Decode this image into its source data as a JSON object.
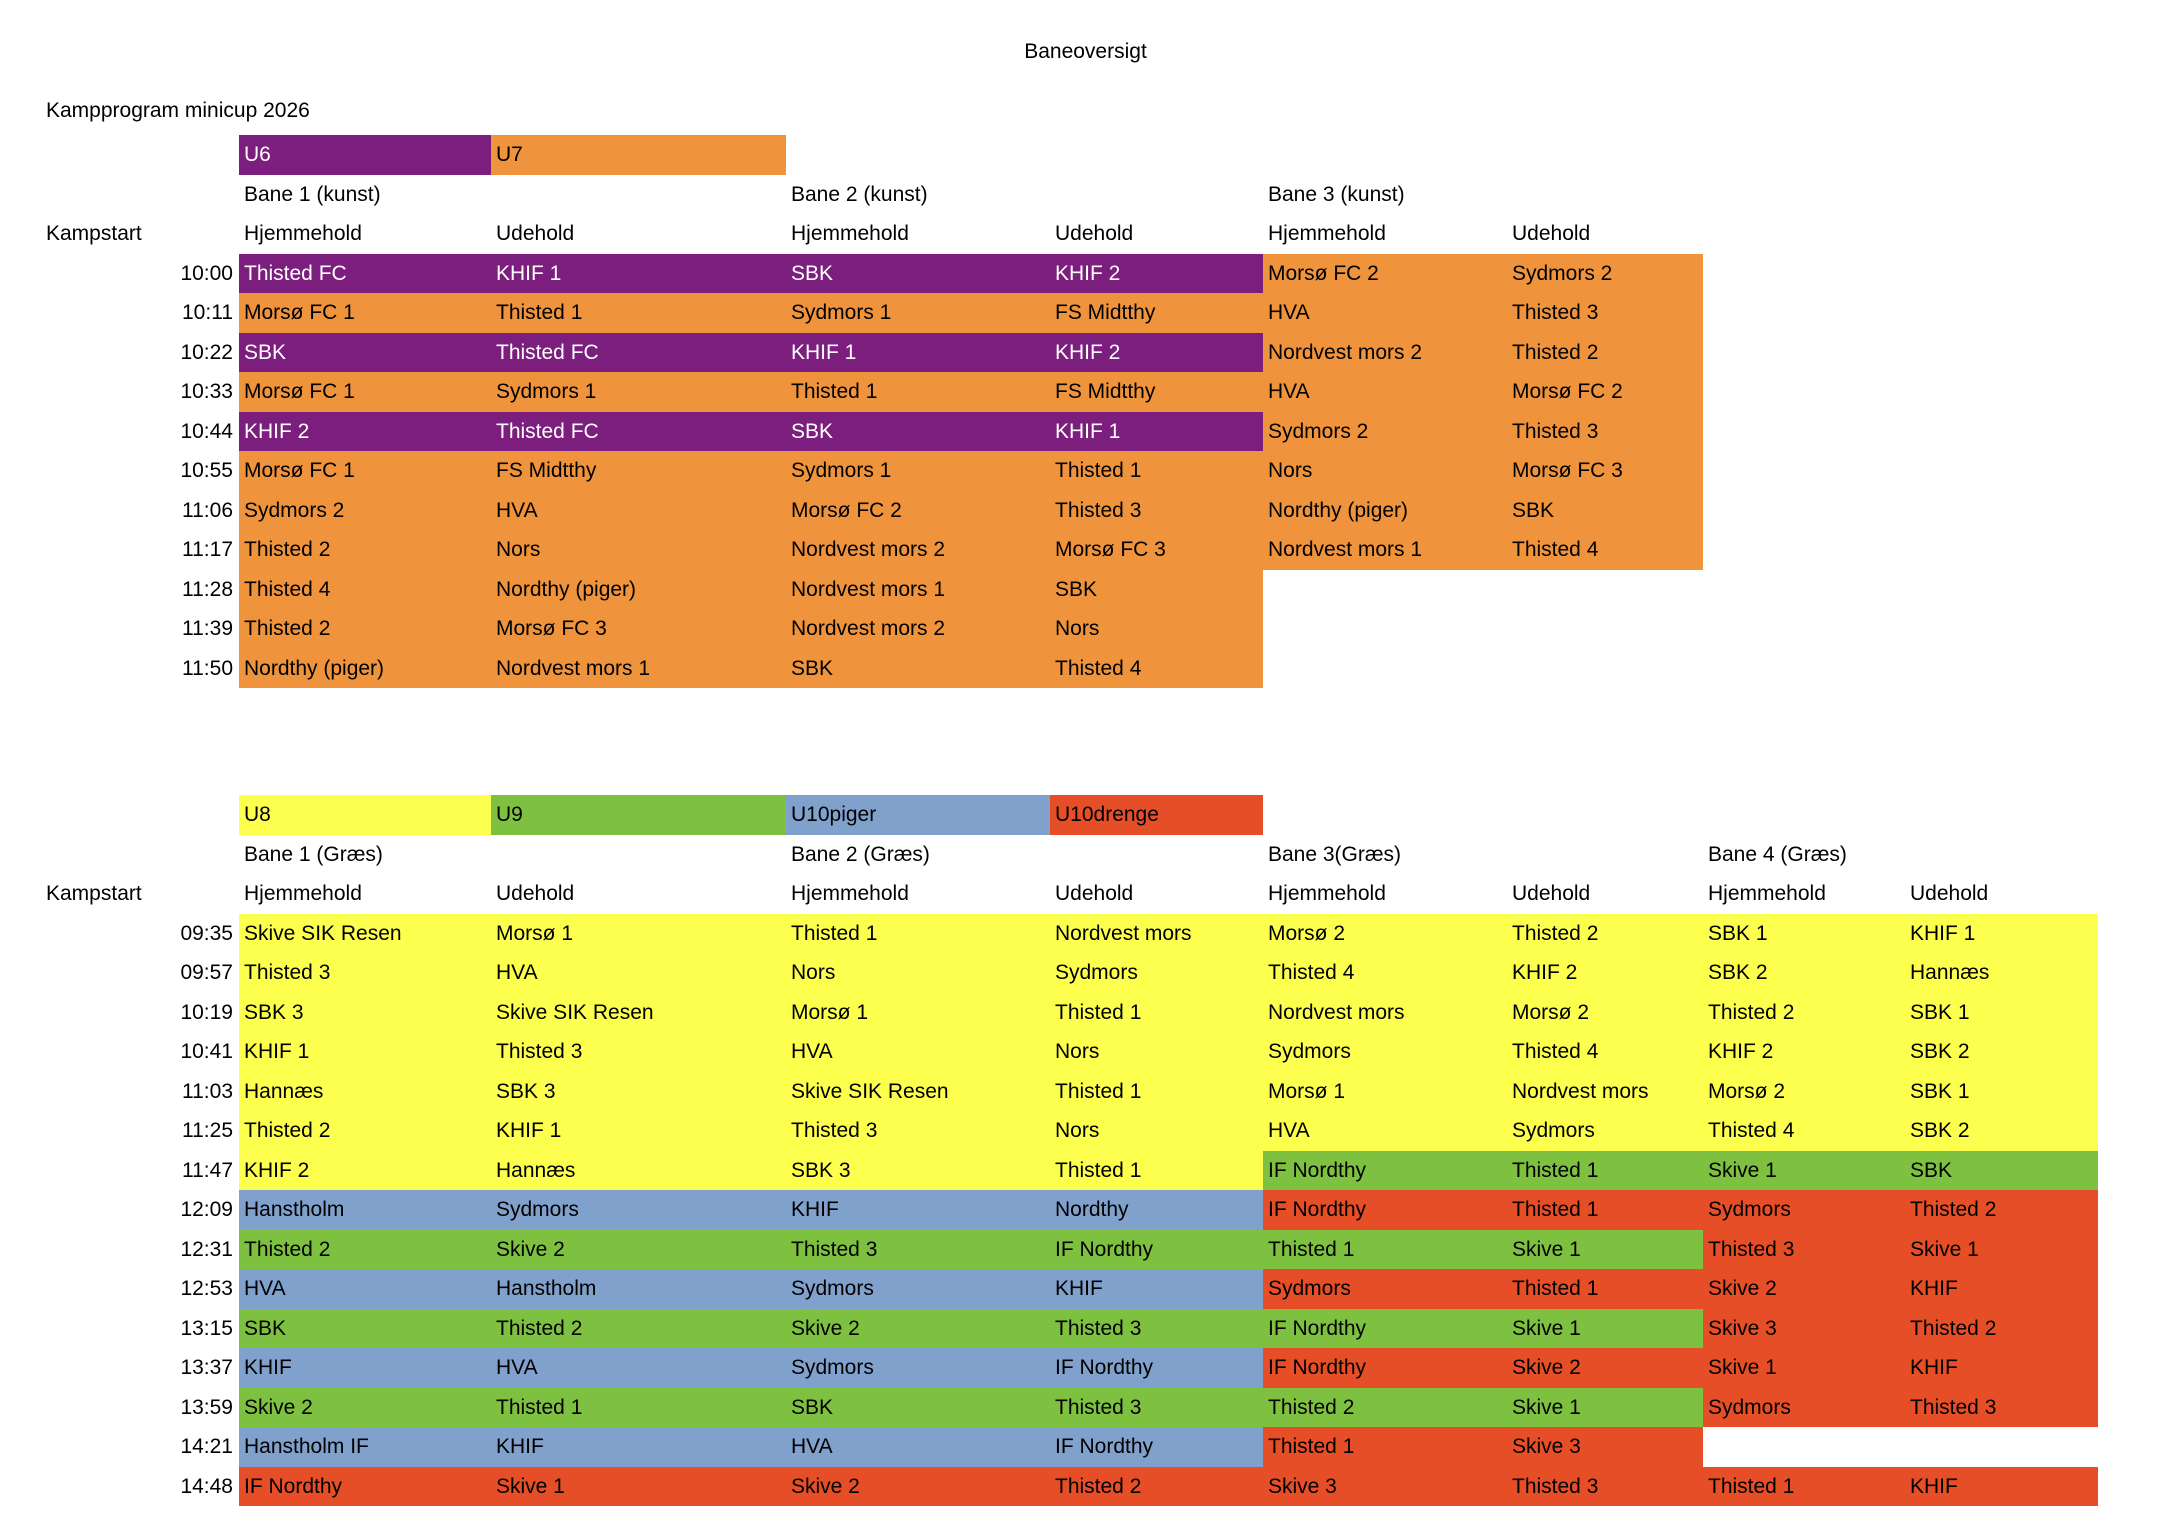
{
  "title": "Baneoversigt",
  "subtitle": "Kampprogram minicup 2026",
  "colors": {
    "purple": "#7C1E7D",
    "orange": "#EF943C",
    "yellow": "#FDFF4E",
    "green": "#7EC141",
    "blue": "#81A1CD",
    "red": "#E54E26",
    "purple_text": "#FFFFFF",
    "default_text": "#000000"
  },
  "column_headers": {
    "time": "Kampstart",
    "home": "Hjemmehold",
    "away": "Udehold"
  },
  "tables": [
    {
      "name": "kunstbaner",
      "age_groups": [
        {
          "label": "U6",
          "color": "purple"
        },
        {
          "label": "U7",
          "color": "orange"
        }
      ],
      "pitches": [
        "Bane 1 (kunst)",
        "Bane 2 (kunst)",
        "Bane 3 (kunst)"
      ],
      "rows": [
        {
          "time": "10:00",
          "teams": [
            "Thisted FC",
            "KHIF 1",
            "SBK",
            "KHIF 2",
            "Morsø FC 2",
            "Sydmors 2"
          ],
          "colors": [
            "purple",
            "purple",
            "purple",
            "purple",
            "orange",
            "orange"
          ]
        },
        {
          "time": "10:11",
          "teams": [
            "Morsø FC 1",
            "Thisted 1",
            "Sydmors 1",
            "FS Midtthy",
            "HVA",
            "Thisted 3"
          ],
          "colors": [
            "orange",
            "orange",
            "orange",
            "orange",
            "orange",
            "orange"
          ]
        },
        {
          "time": "10:22",
          "teams": [
            "SBK",
            "Thisted FC",
            "KHIF 1",
            "KHIF 2",
            "Nordvest mors 2",
            "Thisted 2"
          ],
          "colors": [
            "purple",
            "purple",
            "purple",
            "purple",
            "orange",
            "orange"
          ]
        },
        {
          "time": "10:33",
          "teams": [
            "Morsø FC 1",
            "Sydmors 1",
            "Thisted 1",
            "FS Midtthy",
            "HVA",
            "Morsø FC 2"
          ],
          "colors": [
            "orange",
            "orange",
            "orange",
            "orange",
            "orange",
            "orange"
          ]
        },
        {
          "time": "10:44",
          "teams": [
            "KHIF 2",
            "Thisted FC",
            "SBK",
            "KHIF 1",
            "Sydmors 2",
            "Thisted 3"
          ],
          "colors": [
            "purple",
            "purple",
            "purple",
            "purple",
            "orange",
            "orange"
          ]
        },
        {
          "time": "10:55",
          "teams": [
            "Morsø FC 1",
            "FS Midtthy",
            "Sydmors 1",
            "Thisted 1",
            "Nors",
            "Morsø FC 3"
          ],
          "colors": [
            "orange",
            "orange",
            "orange",
            "orange",
            "orange",
            "orange"
          ]
        },
        {
          "time": "11:06",
          "teams": [
            "Sydmors 2",
            "HVA",
            "Morsø FC 2",
            "Thisted 3",
            "Nordthy (piger)",
            "SBK"
          ],
          "colors": [
            "orange",
            "orange",
            "orange",
            "orange",
            "orange",
            "orange"
          ]
        },
        {
          "time": "11:17",
          "teams": [
            "Thisted 2",
            "Nors",
            "Nordvest mors 2",
            "Morsø FC 3",
            "Nordvest mors 1",
            "Thisted 4"
          ],
          "colors": [
            "orange",
            "orange",
            "orange",
            "orange",
            "orange",
            "orange"
          ]
        },
        {
          "time": "11:28",
          "teams": [
            "Thisted 4",
            "Nordthy (piger)",
            "Nordvest mors 1",
            "SBK",
            "",
            ""
          ],
          "colors": [
            "orange",
            "orange",
            "orange",
            "orange",
            "none",
            "none"
          ]
        },
        {
          "time": "11:39",
          "teams": [
            "Thisted 2",
            "Morsø FC 3",
            "Nordvest mors 2",
            "Nors",
            "",
            ""
          ],
          "colors": [
            "orange",
            "orange",
            "orange",
            "orange",
            "none",
            "none"
          ]
        },
        {
          "time": "11:50",
          "teams": [
            "Nordthy (piger)",
            "Nordvest mors 1",
            "SBK",
            "Thisted 4",
            "",
            ""
          ],
          "colors": [
            "orange",
            "orange",
            "orange",
            "orange",
            "none",
            "none"
          ]
        }
      ]
    },
    {
      "name": "graesbaner",
      "age_groups": [
        {
          "label": "U8",
          "color": "yellow"
        },
        {
          "label": "U9",
          "color": "green"
        },
        {
          "label": "U10piger",
          "color": "blue"
        },
        {
          "label": "U10drenge",
          "color": "red"
        }
      ],
      "pitches": [
        "Bane 1 (Græs)",
        "Bane 2 (Græs)",
        "Bane 3(Græs)",
        "Bane 4 (Græs)"
      ],
      "rows": [
        {
          "time": "09:35",
          "teams": [
            "Skive SIK Resen",
            "Morsø 1",
            "Thisted 1",
            "Nordvest mors",
            "Morsø 2",
            "Thisted 2",
            "SBK 1",
            "KHIF 1"
          ],
          "colors": [
            "yellow",
            "yellow",
            "yellow",
            "yellow",
            "yellow",
            "yellow",
            "yellow",
            "yellow"
          ]
        },
        {
          "time": "09:57",
          "teams": [
            "Thisted 3",
            "HVA",
            "Nors",
            "Sydmors",
            "Thisted 4",
            "KHIF 2",
            "SBK 2",
            "Hannæs"
          ],
          "colors": [
            "yellow",
            "yellow",
            "yellow",
            "yellow",
            "yellow",
            "yellow",
            "yellow",
            "yellow"
          ]
        },
        {
          "time": "10:19",
          "teams": [
            "SBK 3",
            "Skive SIK Resen",
            "Morsø 1",
            "Thisted 1",
            "Nordvest mors",
            "Morsø 2",
            "Thisted 2",
            "SBK 1"
          ],
          "colors": [
            "yellow",
            "yellow",
            "yellow",
            "yellow",
            "yellow",
            "yellow",
            "yellow",
            "yellow"
          ]
        },
        {
          "time": "10:41",
          "teams": [
            "KHIF 1",
            "Thisted 3",
            "HVA",
            "Nors",
            "Sydmors",
            "Thisted 4",
            "KHIF 2",
            "SBK 2"
          ],
          "colors": [
            "yellow",
            "yellow",
            "yellow",
            "yellow",
            "yellow",
            "yellow",
            "yellow",
            "yellow"
          ]
        },
        {
          "time": "11:03",
          "teams": [
            "Hannæs",
            "SBK 3",
            "Skive SIK Resen",
            "Thisted 1",
            "Morsø 1",
            "Nordvest mors",
            "Morsø 2",
            "SBK 1"
          ],
          "colors": [
            "yellow",
            "yellow",
            "yellow",
            "yellow",
            "yellow",
            "yellow",
            "yellow",
            "yellow"
          ]
        },
        {
          "time": "11:25",
          "teams": [
            "Thisted 2",
            "KHIF 1",
            "Thisted 3",
            "Nors",
            "HVA",
            "Sydmors",
            "Thisted 4",
            "SBK 2"
          ],
          "colors": [
            "yellow",
            "yellow",
            "yellow",
            "yellow",
            "yellow",
            "yellow",
            "yellow",
            "yellow"
          ]
        },
        {
          "time": "11:47",
          "teams": [
            "KHIF 2",
            "Hannæs",
            "SBK 3",
            "Thisted 1",
            "IF Nordthy",
            "Thisted 1",
            "Skive 1",
            "SBK"
          ],
          "colors": [
            "yellow",
            "yellow",
            "yellow",
            "yellow",
            "green",
            "green",
            "green",
            "green"
          ]
        },
        {
          "time": "12:09",
          "teams": [
            "Hanstholm",
            "Sydmors",
            "KHIF",
            "Nordthy",
            "IF Nordthy",
            "Thisted 1",
            "Sydmors",
            "Thisted 2"
          ],
          "colors": [
            "blue",
            "blue",
            "blue",
            "blue",
            "red",
            "red",
            "red",
            "red"
          ]
        },
        {
          "time": "12:31",
          "teams": [
            "Thisted 2",
            "Skive 2",
            "Thisted 3",
            "IF Nordthy",
            "Thisted 1",
            "Skive 1",
            "Thisted 3",
            "Skive 1"
          ],
          "colors": [
            "green",
            "green",
            "green",
            "green",
            "green",
            "green",
            "red",
            "red"
          ]
        },
        {
          "time": "12:53",
          "teams": [
            "HVA",
            "Hanstholm",
            "Sydmors",
            "KHIF",
            "Sydmors",
            "Thisted 1",
            "Skive 2",
            "KHIF"
          ],
          "colors": [
            "blue",
            "blue",
            "blue",
            "blue",
            "red",
            "red",
            "red",
            "red"
          ]
        },
        {
          "time": "13:15",
          "teams": [
            "SBK",
            "Thisted 2",
            "Skive 2",
            "Thisted 3",
            "IF Nordthy",
            "Skive 1",
            "Skive 3",
            "Thisted 2"
          ],
          "colors": [
            "green",
            "green",
            "green",
            "green",
            "green",
            "green",
            "red",
            "red"
          ]
        },
        {
          "time": "13:37",
          "teams": [
            "KHIF",
            "HVA",
            "Sydmors",
            "IF Nordthy",
            "IF Nordthy",
            "Skive 2",
            "Skive 1",
            "KHIF"
          ],
          "colors": [
            "blue",
            "blue",
            "blue",
            "blue",
            "red",
            "red",
            "red",
            "red"
          ]
        },
        {
          "time": "13:59",
          "teams": [
            "Skive 2",
            "Thisted 1",
            "SBK",
            "Thisted 3",
            "Thisted 2",
            "Skive 1",
            "Sydmors",
            "Thisted 3"
          ],
          "colors": [
            "green",
            "green",
            "green",
            "green",
            "green",
            "green",
            "red",
            "red"
          ]
        },
        {
          "time": "14:21",
          "teams": [
            "Hanstholm IF",
            "KHIF",
            "HVA",
            "IF Nordthy",
            "Thisted 1",
            "Skive 3",
            "",
            ""
          ],
          "colors": [
            "blue",
            "blue",
            "blue",
            "blue",
            "red",
            "red",
            "none",
            "none"
          ]
        },
        {
          "time": "14:48",
          "teams": [
            "IF Nordthy",
            "Skive 1",
            "Skive 2",
            "Thisted 2",
            "Skive 3",
            "Thisted 3",
            "Thisted 1",
            "KHIF"
          ],
          "colors": [
            "red",
            "red",
            "red",
            "red",
            "red",
            "red",
            "red",
            "red"
          ]
        }
      ]
    }
  ]
}
